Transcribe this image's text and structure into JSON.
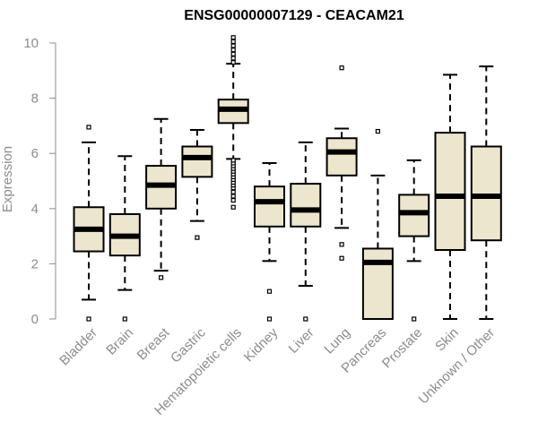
{
  "chart_data": {
    "type": "boxplot",
    "title": "ENSG00000007129 - CEACAM21",
    "xlabel": "",
    "ylabel": "Expression",
    "ylim": [
      0,
      10
    ],
    "yticks": [
      0,
      2,
      4,
      6,
      8,
      10
    ],
    "colors": {
      "box_fill": "#ede6ce",
      "stroke": "#000000",
      "axis": "#8c8c8c",
      "text": "#8c8c8c"
    },
    "categories": [
      "Bladder",
      "Brain",
      "Breast",
      "Gastric",
      "Hematopoietic cells",
      "Kidney",
      "Liver",
      "Lung",
      "Pancreas",
      "Prostate",
      "Skin",
      "Unknown / Other"
    ],
    "boxes": [
      {
        "category": "Bladder",
        "whisker_low": 0.7,
        "q1": 2.45,
        "median": 3.25,
        "q3": 4.05,
        "whisker_high": 6.4,
        "outliers": [
          0.0,
          6.95
        ]
      },
      {
        "category": "Brain",
        "whisker_low": 1.05,
        "q1": 2.3,
        "median": 3.0,
        "q3": 3.8,
        "whisker_high": 5.9,
        "outliers": [
          0.0
        ]
      },
      {
        "category": "Breast",
        "whisker_low": 1.75,
        "q1": 4.0,
        "median": 4.85,
        "q3": 5.55,
        "whisker_high": 7.25,
        "outliers": [
          1.5
        ]
      },
      {
        "category": "Gastric",
        "whisker_low": 3.55,
        "q1": 5.15,
        "median": 5.85,
        "q3": 6.25,
        "whisker_high": 6.85,
        "outliers": [
          2.95
        ]
      },
      {
        "category": "Hematopoietic cells",
        "whisker_low": 5.8,
        "q1": 7.1,
        "median": 7.6,
        "q3": 7.95,
        "whisker_high": 9.25,
        "outliers": [
          4.05,
          4.3,
          4.45,
          4.6,
          4.75,
          4.85,
          4.95,
          5.05,
          5.15,
          5.25,
          5.35,
          5.45,
          5.55,
          5.65,
          5.75,
          9.3,
          9.45,
          9.6,
          9.75,
          9.9,
          10.05,
          10.2
        ]
      },
      {
        "category": "Kidney",
        "whisker_low": 2.1,
        "q1": 3.35,
        "median": 4.25,
        "q3": 4.8,
        "whisker_high": 5.65,
        "outliers": [
          0.0,
          1.0
        ]
      },
      {
        "category": "Liver",
        "whisker_low": 1.2,
        "q1": 3.35,
        "median": 3.95,
        "q3": 4.9,
        "whisker_high": 6.4,
        "outliers": [
          0.0
        ]
      },
      {
        "category": "Lung",
        "whisker_low": 3.3,
        "q1": 5.2,
        "median": 6.05,
        "q3": 6.55,
        "whisker_high": 6.9,
        "outliers": [
          2.2,
          2.7,
          9.1
        ]
      },
      {
        "category": "Pancreas",
        "whisker_low": 0.0,
        "q1": 0.0,
        "median": 2.05,
        "q3": 2.55,
        "whisker_high": 5.2,
        "outliers": [
          6.8
        ]
      },
      {
        "category": "Prostate",
        "whisker_low": 2.1,
        "q1": 3.0,
        "median": 3.85,
        "q3": 4.5,
        "whisker_high": 5.75,
        "outliers": [
          0.0
        ]
      },
      {
        "category": "Skin",
        "whisker_low": 0.0,
        "q1": 2.5,
        "median": 4.45,
        "q3": 6.75,
        "whisker_high": 8.85,
        "outliers": []
      },
      {
        "category": "Unknown / Other",
        "whisker_low": 0.0,
        "q1": 2.85,
        "median": 4.45,
        "q3": 6.25,
        "whisker_high": 9.15,
        "outliers": []
      }
    ]
  }
}
